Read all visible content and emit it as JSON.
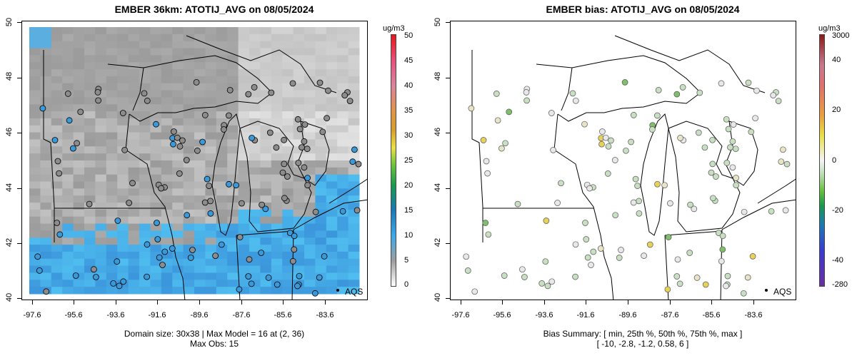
{
  "left_panel": {
    "title": "EMBER 36km: ATOTIJ_AVG on 08/05/2024",
    "footer_line1": "Domain size: 30x38 | Max Model = 16 at (2, 36)",
    "footer_line2": "Max Obs: 15",
    "colorbar_unit": "ug/m3",
    "colorbar_labels": [
      "50",
      "45",
      "40",
      "35",
      "30",
      "25",
      "20",
      "15",
      "10",
      "5",
      "0"
    ],
    "aqs_label": "AQS"
  },
  "right_panel": {
    "title": "EMBER bias: ATOTIJ_AVG on 08/05/2024",
    "footer_line1": "Bias Summary: [ min, 25th %, 50th %, 75th %, max ]",
    "footer_line2": "[ -10,   -2.8,   -1.2,   0.58,   6 ]",
    "colorbar_unit": "ug/m3",
    "colorbar_labels": [
      "3000",
      "40",
      "20",
      "0",
      "-20",
      "-40",
      "-280"
    ],
    "aqs_label": "AQS"
  },
  "axes": {
    "y_ticks": [
      "50",
      "48",
      "46",
      "44",
      "42",
      "40"
    ],
    "x_ticks": [
      "-97.6",
      "-95.6",
      "-93.6",
      "-91.6",
      "-89.6",
      "-87.6",
      "-85.6",
      "-83.6"
    ]
  },
  "colors": {
    "model_high": "#3fa9e8",
    "model_low": "#d6d6d6",
    "bias_near_zero": "#c9dfc2",
    "bias_positive": "#e6d25a"
  },
  "chart_data": [
    {
      "type": "heatmap",
      "title": "EMBER 36km: ATOTIJ_AVG on 08/05/2024",
      "x_ticks": [
        -97.6,
        -95.6,
        -93.6,
        -91.6,
        -89.6,
        -87.6,
        -85.6,
        -83.6
      ],
      "y_ticks": [
        40,
        42,
        44,
        46,
        48,
        50
      ],
      "xlim": [
        -98.0,
        -83.2
      ],
      "ylim": [
        40.0,
        50.0
      ],
      "colorbar_range": [
        0,
        50
      ],
      "colorbar_unit": "ug/m3",
      "grid": "30x38",
      "max_model": 16,
      "max_obs": 15
    },
    {
      "type": "scatter",
      "title": "EMBER bias: ATOTIJ_AVG on 08/05/2024",
      "xlim": [
        -98.0,
        -83.2
      ],
      "ylim": [
        40.0,
        50.0
      ],
      "colorbar_unit": "ug/m3",
      "bias_summary": {
        "min": -10,
        "p25": -2.8,
        "p50": -1.2,
        "p75": 0.58,
        "max": 6
      }
    }
  ]
}
